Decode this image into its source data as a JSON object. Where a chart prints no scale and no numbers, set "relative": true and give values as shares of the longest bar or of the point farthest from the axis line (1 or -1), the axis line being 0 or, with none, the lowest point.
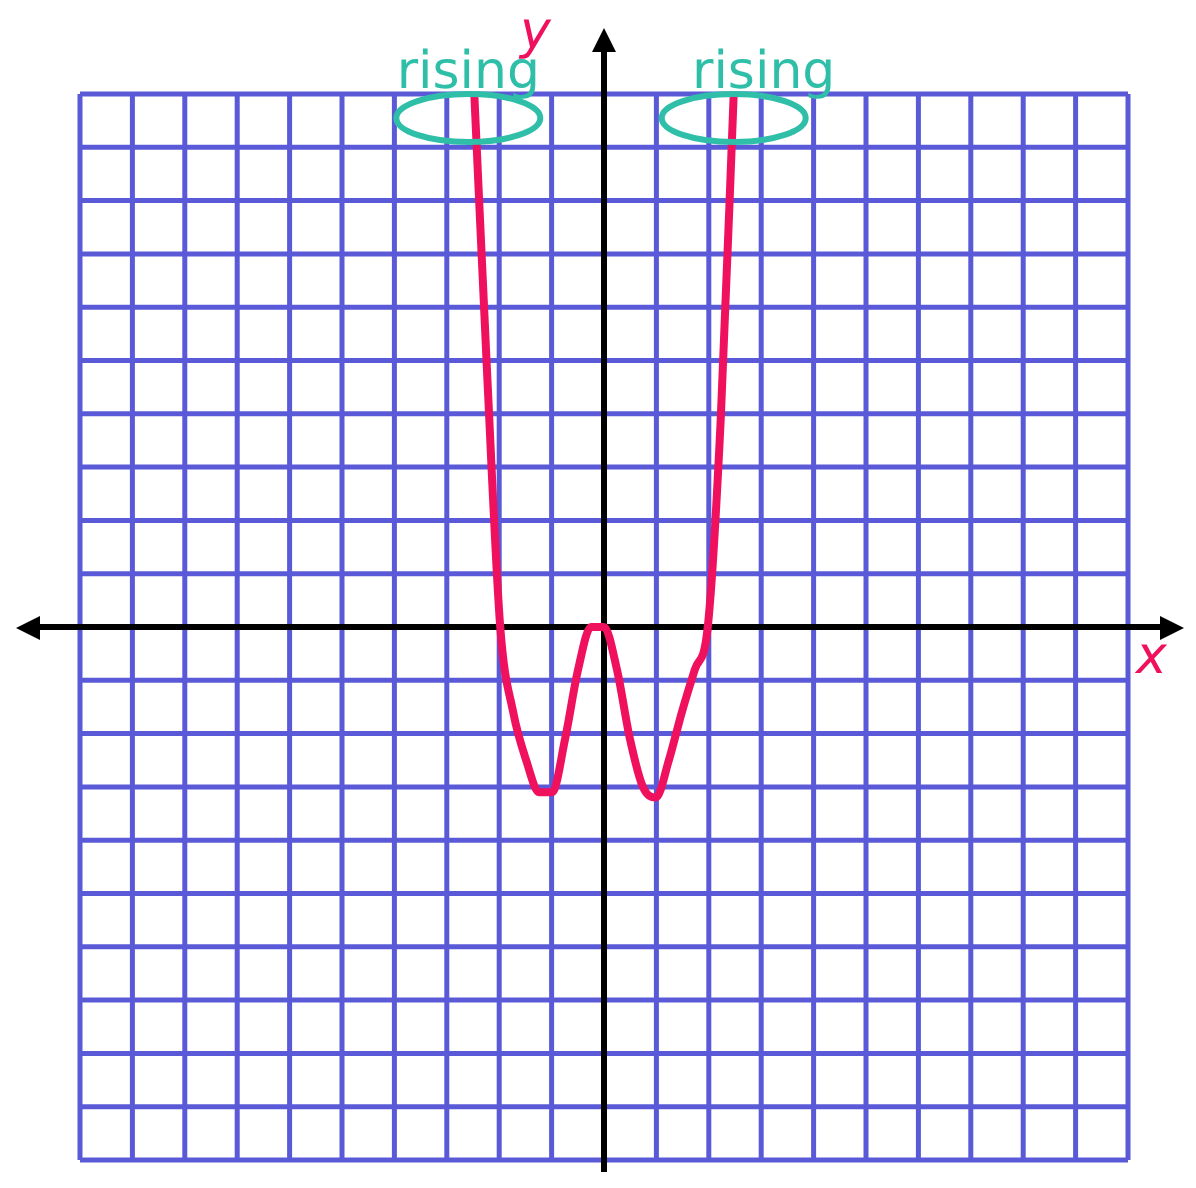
{
  "chart_data": {
    "type": "line",
    "relative": true,
    "grid": true,
    "marker": "none",
    "line_style": "solid",
    "legend": false,
    "categories": [
      null,
      null,
      null,
      null,
      null,
      null,
      null,
      null,
      null,
      null,
      null,
      null,
      null,
      null,
      null,
      null,
      null,
      null,
      null,
      null,
      null
    ],
    "series": [
      {
        "color": "#f0115e",
        "values": [
          1.0,
          0.47,
          0,
          -0.16,
          -0.25,
          -0.31,
          -0.31,
          -0.21,
          -0.08,
          0,
          0,
          -0.08,
          -0.21,
          -0.3,
          -0.32,
          -0.25,
          -0.16,
          -0.08,
          0,
          0.39,
          1.0
        ]
      }
    ],
    "annotations": [
      "rising",
      "rising",
      "y",
      "x"
    ]
  }
}
